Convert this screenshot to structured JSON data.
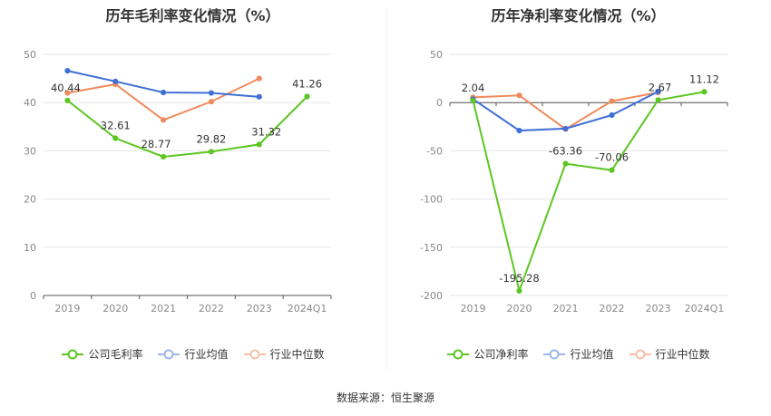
{
  "chart_data": [
    {
      "type": "line",
      "title": "历年毛利率变化情况（%）",
      "categories": [
        "2019",
        "2020",
        "2021",
        "2022",
        "2023",
        "2024Q1"
      ],
      "ylim": [
        0,
        50
      ],
      "yticks": [
        0,
        10,
        20,
        30,
        40,
        50
      ],
      "grid": true,
      "legend_position": "bottom",
      "series": [
        {
          "name": "公司毛利率",
          "color": "#5cc623",
          "values": [
            40.44,
            32.61,
            28.77,
            29.82,
            31.32,
            41.26
          ],
          "labels": [
            "40.44",
            "32.61",
            "28.77",
            "29.82",
            "31.32",
            "41.26"
          ]
        },
        {
          "name": "行业均值",
          "color": "#3f6fd6",
          "values": [
            46.6,
            44.4,
            42.1,
            42.0,
            41.2,
            null
          ]
        },
        {
          "name": "行业中位数",
          "color": "#f08a5d",
          "values": [
            42.0,
            43.8,
            36.4,
            40.2,
            45.0,
            null
          ]
        }
      ]
    },
    {
      "type": "line",
      "title": "历年净利率变化情况（%）",
      "categories": [
        "2019",
        "2020",
        "2021",
        "2022",
        "2023",
        "2024Q1"
      ],
      "ylim": [
        -200,
        50
      ],
      "yticks": [
        -200,
        -150,
        -100,
        -50,
        0,
        50
      ],
      "grid": true,
      "legend_position": "bottom",
      "series": [
        {
          "name": "公司净利率",
          "color": "#5cc623",
          "values": [
            2.04,
            -195.28,
            -63.36,
            -70.06,
            2.67,
            11.12
          ],
          "labels": [
            "2.04",
            "-195.28",
            "-63.36",
            "-70.06",
            "2.67",
            "11.12"
          ]
        },
        {
          "name": "行业均值",
          "color": "#3f6fd6",
          "values": [
            3.5,
            -29.0,
            -27.0,
            -13.0,
            11.5,
            null
          ]
        },
        {
          "name": "行业中位数",
          "color": "#f08a5d",
          "values": [
            5.5,
            7.5,
            -27.5,
            1.5,
            10.5,
            null
          ]
        }
      ]
    }
  ],
  "source_text": "数据来源：恒生聚源",
  "colors": {
    "company": "#5cc623",
    "avg": "#3f6fd6",
    "median": "#f08a5d"
  }
}
